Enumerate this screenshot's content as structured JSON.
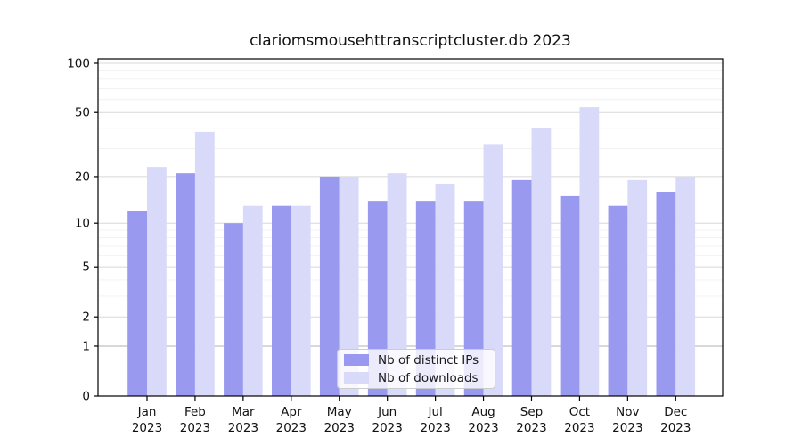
{
  "chart_data": {
    "type": "bar",
    "title": "clariomsmousehttranscriptcluster.db 2023",
    "categories": [
      "Jan",
      "Feb",
      "Mar",
      "Apr",
      "May",
      "Jun",
      "Jul",
      "Aug",
      "Sep",
      "Oct",
      "Nov",
      "Dec"
    ],
    "year_label": "2023",
    "series": [
      {
        "name": "Nb of distinct IPs",
        "color": "#9999f0",
        "values": [
          12,
          21,
          10,
          13,
          20,
          14,
          14,
          14,
          19,
          15,
          13,
          16
        ]
      },
      {
        "name": "Nb of downloads",
        "color": "#d9d9fa",
        "values": [
          23,
          38,
          13,
          13,
          20,
          21,
          18,
          32,
          40,
          54,
          19,
          20
        ]
      }
    ],
    "y_axis": {
      "scale": "log1p",
      "tick_labels": [
        0,
        1,
        2,
        5,
        10,
        20,
        50,
        100
      ],
      "minor_gridlines": [
        3,
        4,
        6,
        7,
        8,
        9,
        30,
        40,
        60,
        70,
        80,
        90
      ],
      "ylim": [
        0,
        107
      ]
    },
    "grid": "on",
    "legend_position": "bottom-center",
    "colors": {
      "axis": "#000000",
      "text": "#111111",
      "major_grid": "#d8d8d8",
      "baseline_grid": "#b0b0b0",
      "minor_grid": "#f1f1f1"
    }
  }
}
